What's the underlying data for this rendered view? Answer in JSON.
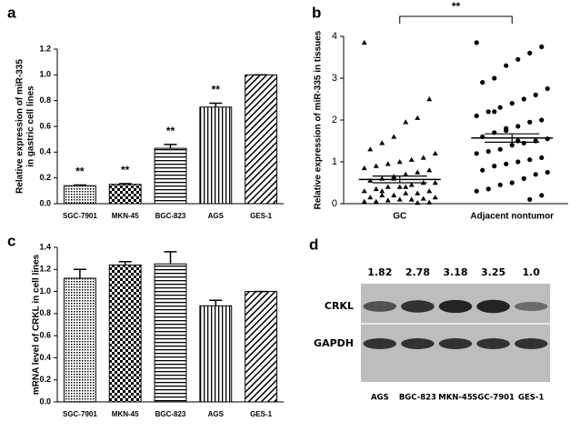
{
  "chart_data": [
    {
      "type": "bar",
      "panel_label": "a",
      "ylabel": [
        "Relative expression of miR-335",
        "in gastric cell lines"
      ],
      "categories": [
        "SGC-7901",
        "MKN-45",
        "BGC-823",
        "AGS",
        "GES-1"
      ],
      "values": [
        0.14,
        0.15,
        0.43,
        0.75,
        1.0
      ],
      "errors": [
        0.005,
        0.005,
        0.03,
        0.03,
        0
      ],
      "annotations": [
        {
          "text": "**",
          "category": "SGC-7901"
        },
        {
          "text": "**",
          "category": "MKN-45"
        },
        {
          "text": "**",
          "category": "BGC-823"
        },
        {
          "text": "**",
          "category": "AGS"
        }
      ],
      "ylim": [
        0,
        1.2
      ],
      "yticks": [
        {
          "value": 0,
          "label": "0.0"
        },
        0.2,
        0.4,
        0.6,
        0.8,
        {
          "value": 1,
          "label": "1.0"
        },
        1.2
      ],
      "color": "#000000"
    },
    {
      "type": "dotplot",
      "panel_label": "b",
      "ylabel": "Relative expression of miR-335 in tissues",
      "significance": "**",
      "groups": [
        {
          "name": "GC",
          "marker": "triangle",
          "mean": 0.58,
          "sem": 0.08,
          "values": [
            3.85,
            2.5,
            2.05,
            1.95,
            1.6,
            1.45,
            1.3,
            1.2,
            1.1,
            1.05,
            1.0,
            0.95,
            0.9,
            0.85,
            0.8,
            0.75,
            0.7,
            0.65,
            0.6,
            0.55,
            0.5,
            0.5,
            0.45,
            0.4,
            0.4,
            0.35,
            0.3,
            0.3,
            0.25,
            0.25,
            0.2,
            0.2,
            0.15,
            0.15,
            0.12,
            0.1,
            0.1,
            0.08,
            0.05,
            0.05,
            0.03,
            0.02,
            0.4,
            0.6,
            0.3
          ]
        },
        {
          "name": "Adjacent nontumor",
          "marker": "circle",
          "mean": 1.57,
          "sem": 0.1,
          "values": [
            3.85,
            3.75,
            3.6,
            3.45,
            3.3,
            3.0,
            2.9,
            2.75,
            2.6,
            2.5,
            2.4,
            2.3,
            2.2,
            2.1,
            2.0,
            1.95,
            1.85,
            1.75,
            1.7,
            1.6,
            1.55,
            1.5,
            1.45,
            1.4,
            1.3,
            1.25,
            1.2,
            1.1,
            1.05,
            1.0,
            0.95,
            0.9,
            0.8,
            0.75,
            0.7,
            0.6,
            0.5,
            0.45,
            0.35,
            0.3,
            0.2,
            0.1,
            1.5,
            1.8,
            2.2
          ]
        }
      ],
      "ylim": [
        0,
        4
      ],
      "yticks": [
        0,
        1,
        2,
        3,
        4
      ],
      "color": "#000000"
    },
    {
      "type": "bar",
      "panel_label": "c",
      "ylabel": "mRNA level of CRKL in cell lines",
      "categories": [
        "SGC-7901",
        "MKN-45",
        "BGC-823",
        "AGS",
        "GES-1"
      ],
      "values": [
        1.12,
        1.24,
        1.25,
        0.87,
        1.0
      ],
      "errors": [
        0.08,
        0.03,
        0.11,
        0.05,
        0
      ],
      "ylim": [
        0,
        1.4
      ],
      "yticks": [
        {
          "value": 0,
          "label": "0.0"
        },
        0.2,
        0.4,
        0.6,
        0.8,
        {
          "value": 1,
          "label": "1.0"
        },
        1.2,
        1.4
      ],
      "color": "#000000"
    },
    {
      "type": "blot",
      "panel_label": "d",
      "rows": [
        "CRKL",
        "GAPDH"
      ],
      "categories": [
        "AGS",
        "BGC-823",
        "MKN-45",
        "SGC-7901",
        "GES-1"
      ],
      "values": [
        1.82,
        2.78,
        3.18,
        3.25,
        1
      ],
      "value_labels": [
        "1.82",
        "2.78",
        "3.18",
        "3.25",
        "1.0"
      ]
    }
  ]
}
